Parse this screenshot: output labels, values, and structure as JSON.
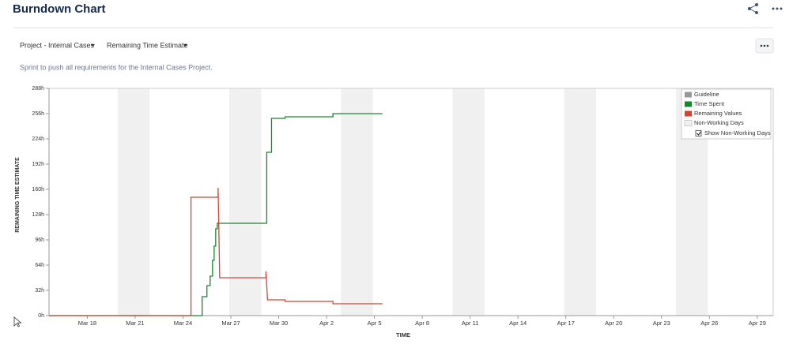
{
  "header": {
    "title": "Burndown Chart"
  },
  "filters": [
    "Project - Internal Cases",
    "Remaining Time Estimate"
  ],
  "description": "Sprint to push all requirements for the Internal Cases Project.",
  "chart_data": {
    "type": "line",
    "x_label": "TIME",
    "y_label": "REMAINING TIME ESTIMATE",
    "xlim": [
      15.6,
      61
    ],
    "xticks": [
      {
        "value": 18,
        "label": "Mar 18"
      },
      {
        "value": 21,
        "label": "Mar 21"
      },
      {
        "value": 24,
        "label": "Mar 24"
      },
      {
        "value": 27,
        "label": "Mar 27"
      },
      {
        "value": 30,
        "label": "Mar 30"
      },
      {
        "value": 33,
        "label": "Apr 2"
      },
      {
        "value": 36,
        "label": "Apr 5"
      },
      {
        "value": 39,
        "label": "Apr 8"
      },
      {
        "value": 42,
        "label": "Apr 11"
      },
      {
        "value": 45,
        "label": "Apr 14"
      },
      {
        "value": 48,
        "label": "Apr 17"
      },
      {
        "value": 51,
        "label": "Apr 20"
      },
      {
        "value": 54,
        "label": "Apr 23"
      },
      {
        "value": 57,
        "label": "Apr 26"
      },
      {
        "value": 60,
        "label": "Apr 29"
      }
    ],
    "ylim": [
      0,
      288
    ],
    "yticks": [
      {
        "value": 0,
        "label": "0h"
      },
      {
        "value": 32,
        "label": "32h"
      },
      {
        "value": 64,
        "label": "64h"
      },
      {
        "value": 96,
        "label": "96h"
      },
      {
        "value": 128,
        "label": "128h"
      },
      {
        "value": 160,
        "label": "160h"
      },
      {
        "value": 192,
        "label": "192h"
      },
      {
        "value": 224,
        "label": "224h"
      },
      {
        "value": 256,
        "label": "256h"
      },
      {
        "value": 288,
        "label": "288h"
      }
    ],
    "grid": false,
    "guideline": {
      "name": "Guideline",
      "color": "#999999"
    },
    "non_working_days": {
      "name": "Non-Working Days",
      "color": "#f0f0f0",
      "ranges": [
        [
          19.9,
          21.9
        ],
        [
          26.9,
          28.9
        ],
        [
          33.9,
          35.9
        ],
        [
          40.9,
          42.9
        ],
        [
          47.9,
          49.9
        ],
        [
          54.9,
          56.9
        ]
      ]
    },
    "legend_checkbox": "Show Non-Working Days",
    "series": [
      {
        "name": "Time Spent",
        "color": "#14892c",
        "x": [
          15.6,
          25.2,
          25.2,
          25.5,
          25.5,
          25.7,
          25.7,
          25.85,
          25.85,
          25.95,
          25.95,
          26.05,
          26.05,
          26.15,
          26.15,
          29.25,
          29.25,
          29.55,
          29.55,
          30.4,
          30.4,
          33.4,
          33.4,
          36.5
        ],
        "values": [
          0,
          0,
          24,
          24,
          38,
          38,
          50,
          50,
          70,
          70,
          88,
          88,
          110,
          110,
          117,
          117,
          207,
          207,
          250,
          250,
          252,
          252,
          256,
          256
        ]
      },
      {
        "name": "Remaining Values",
        "color": "#d04437",
        "x": [
          15.6,
          24.5,
          24.5,
          26.2,
          26.2,
          26.3,
          29.2,
          29.2,
          29.3,
          30.4,
          30.4,
          33.4,
          33.4,
          36.5
        ],
        "values": [
          0,
          0,
          150,
          150,
          162,
          48,
          48,
          56,
          20,
          20,
          18,
          18,
          15,
          15
        ]
      }
    ]
  }
}
